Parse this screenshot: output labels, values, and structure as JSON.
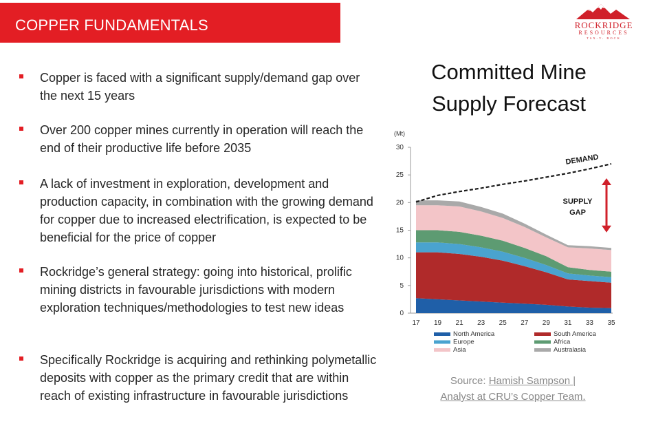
{
  "header": {
    "title": "COPPER FUNDAMENTALS"
  },
  "logo": {
    "name": "ROCKRIDGE",
    "sub": "RESOURCES",
    "tag": "TSX-V: ROCK"
  },
  "bullets": [
    "Copper is faced with a significant supply/demand gap over the next 15 years",
    "Over 200 copper mines currently in operation will reach the end of their productive life before 2035",
    "A lack of investment in exploration, development and production capacity, in combination with the growing demand for copper due to increased electrification, is expected to be beneficial for the price of copper",
    "Rockridge’s general strategy: going into historical, prolific mining districts in favourable jurisdictions with modern exploration techniques/methodologies to test new ideas",
    "Specifically Rockridge is acquiring and rethinking polymetallic deposits with copper as the primary credit that are within reach of existing infrastructure in favourable jurisdictions"
  ],
  "source": {
    "prefix": "Source: ",
    "line1": "Hamish Sampson |",
    "line2": "Analyst at CRU’s Copper Team."
  },
  "colors": {
    "header_red": "#e31e24",
    "north_america": "#1f5fa8",
    "south_america": "#b02a2a",
    "europe": "#4aa3cf",
    "africa": "#5d9b72",
    "asia": "#f3c5c8",
    "australasia": "#a9a9a9",
    "gap_arrow": "#d0202a"
  },
  "chart_data": {
    "type": "area",
    "title": "Committed Mine Supply Forecast",
    "ylabel": "(Mt)",
    "ylim": [
      0,
      30
    ],
    "yticks": [
      0,
      5,
      10,
      15,
      20,
      25,
      30
    ],
    "x": [
      17,
      19,
      21,
      23,
      25,
      27,
      29,
      31,
      33,
      35
    ],
    "xtick_labels": [
      "17",
      "19",
      "21",
      "23",
      "25",
      "27",
      "29",
      "31",
      "33",
      "35"
    ],
    "series": [
      {
        "name": "North America",
        "color": "#1f5fa8",
        "values": [
          2.7,
          2.5,
          2.3,
          2.1,
          1.9,
          1.7,
          1.5,
          1.2,
          1.0,
          0.9
        ]
      },
      {
        "name": "South America",
        "color": "#b02a2a",
        "values": [
          8.3,
          8.5,
          8.4,
          8.1,
          7.6,
          6.8,
          5.9,
          4.9,
          4.8,
          4.6
        ]
      },
      {
        "name": "Europe",
        "color": "#4aa3cf",
        "values": [
          1.8,
          1.8,
          1.8,
          1.7,
          1.6,
          1.5,
          1.3,
          1.1,
          1.0,
          1.0
        ]
      },
      {
        "name": "Africa",
        "color": "#5d9b72",
        "values": [
          2.2,
          2.2,
          2.2,
          2.1,
          2.0,
          1.8,
          1.6,
          1.1,
          1.0,
          1.0
        ]
      },
      {
        "name": "Asia",
        "color": "#f3c5c8",
        "values": [
          4.5,
          4.5,
          4.6,
          4.4,
          4.1,
          3.8,
          3.4,
          3.6,
          3.9,
          3.9
        ]
      },
      {
        "name": "Australasia",
        "color": "#a9a9a9",
        "values": [
          0.9,
          0.9,
          0.9,
          0.8,
          0.8,
          0.6,
          0.5,
          0.4,
          0.4,
          0.4
        ]
      }
    ],
    "demand": {
      "name": "DEMAND",
      "values": [
        20.1,
        21.3,
        22.0,
        22.6,
        23.3,
        23.9,
        24.6,
        25.3,
        26.1,
        27.0
      ]
    },
    "annotations": {
      "gap_line1": "SUPPLY",
      "gap_line2": "GAP"
    },
    "legend_position": "bottom"
  }
}
